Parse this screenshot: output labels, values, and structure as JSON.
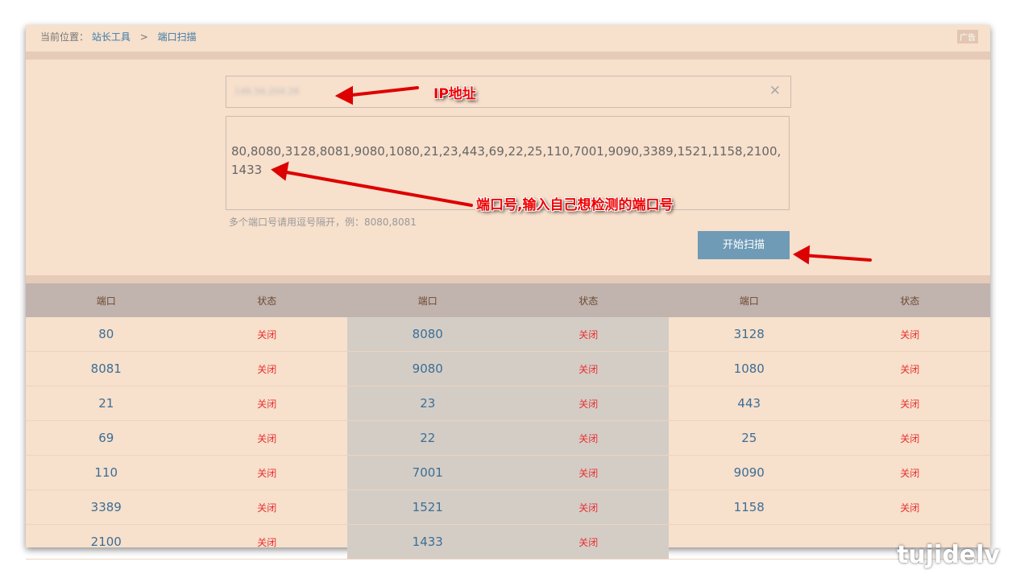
{
  "breadcrumb": {
    "label": "当前位置：",
    "home": "站长工具",
    "sep": ">",
    "current": "端口扫描"
  },
  "ad": "广告",
  "ip_input": {
    "value": "146.56.204.26"
  },
  "ports_input": {
    "value": "80,8080,3128,8081,9080,1080,21,23,443,69,22,25,110,7001,9090,3389,1521,1158,2100,1433"
  },
  "hint": "多个端口号请用逗号隔开，例：8080,8081",
  "scan_button": "开始扫描",
  "table": {
    "headers": [
      "端口",
      "状态",
      "端口",
      "状态",
      "端口",
      "状态"
    ],
    "rows": [
      [
        "80",
        "关闭",
        "8080",
        "关闭",
        "3128",
        "关闭"
      ],
      [
        "8081",
        "关闭",
        "9080",
        "关闭",
        "1080",
        "关闭"
      ],
      [
        "21",
        "关闭",
        "23",
        "关闭",
        "443",
        "关闭"
      ],
      [
        "69",
        "关闭",
        "22",
        "关闭",
        "25",
        "关闭"
      ],
      [
        "110",
        "关闭",
        "7001",
        "关闭",
        "9090",
        "关闭"
      ],
      [
        "3389",
        "关闭",
        "1521",
        "关闭",
        "1158",
        "关闭"
      ],
      [
        "2100",
        "关闭",
        "1433",
        "关闭",
        "",
        ""
      ]
    ]
  },
  "annotations": {
    "ip": "IP地址",
    "ports": "端口号,输入自己想检测的端口号"
  },
  "watermark": "tujidelv"
}
